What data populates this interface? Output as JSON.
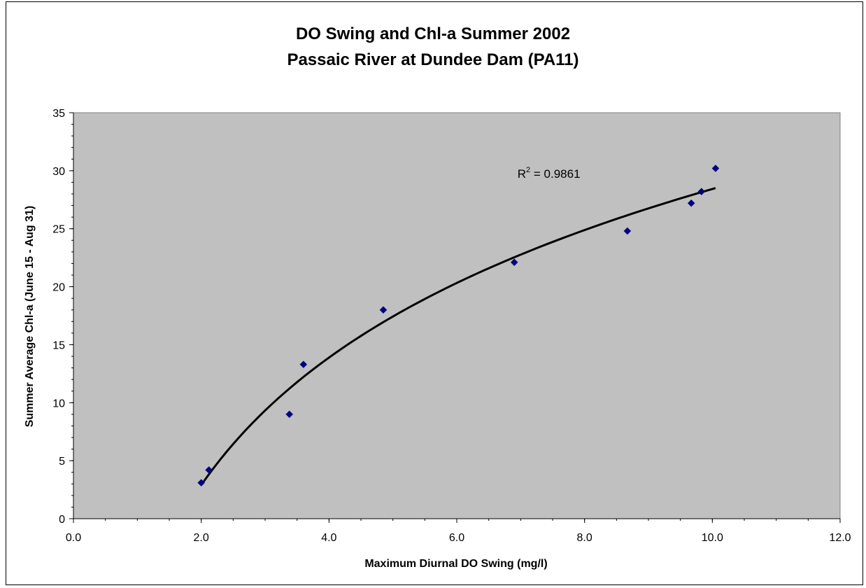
{
  "chart_data": {
    "type": "scatter",
    "title_lines": [
      "DO Swing and Chl-a Summer 2002",
      "Passaic River at Dundee Dam (PA11)"
    ],
    "xlabel": "Maximum Diurnal DO Swing (mg/l)",
    "ylabel": "Summer Average Chl-a (June 15 - Aug 31)",
    "xlim": [
      0,
      12
    ],
    "ylim": [
      0,
      35
    ],
    "x_ticks": [
      "0.0",
      "2.0",
      "4.0",
      "6.0",
      "8.0",
      "10.0",
      "12.0"
    ],
    "y_ticks": [
      "0",
      "5",
      "10",
      "15",
      "20",
      "25",
      "30",
      "35"
    ],
    "grid": false,
    "legend": "none",
    "plot_background": "#c0c0c0",
    "marker_color": "#000080",
    "trendline_color": "#000000",
    "series": [
      {
        "points": [
          {
            "x": 2.0,
            "y": 3.1
          },
          {
            "x": 2.12,
            "y": 4.2
          },
          {
            "x": 3.38,
            "y": 9.0
          },
          {
            "x": 3.6,
            "y": 13.3
          },
          {
            "x": 4.85,
            "y": 18.0
          },
          {
            "x": 6.9,
            "y": 22.1
          },
          {
            "x": 8.67,
            "y": 24.8
          },
          {
            "x": 9.67,
            "y": 27.2
          },
          {
            "x": 9.83,
            "y": 28.2
          },
          {
            "x": 10.05,
            "y": 30.2
          }
        ]
      }
    ],
    "trendline": {
      "type": "logarithmic",
      "x_range": [
        2.0,
        10.05
      ],
      "points": [
        {
          "x": 2.0,
          "y": 2.9
        },
        {
          "x": 10.05,
          "y": 28.5
        }
      ]
    },
    "annotation": {
      "base": "R",
      "sup": "2",
      "rest": " = 0.9861",
      "x": 6.95,
      "y": 29.4
    }
  }
}
